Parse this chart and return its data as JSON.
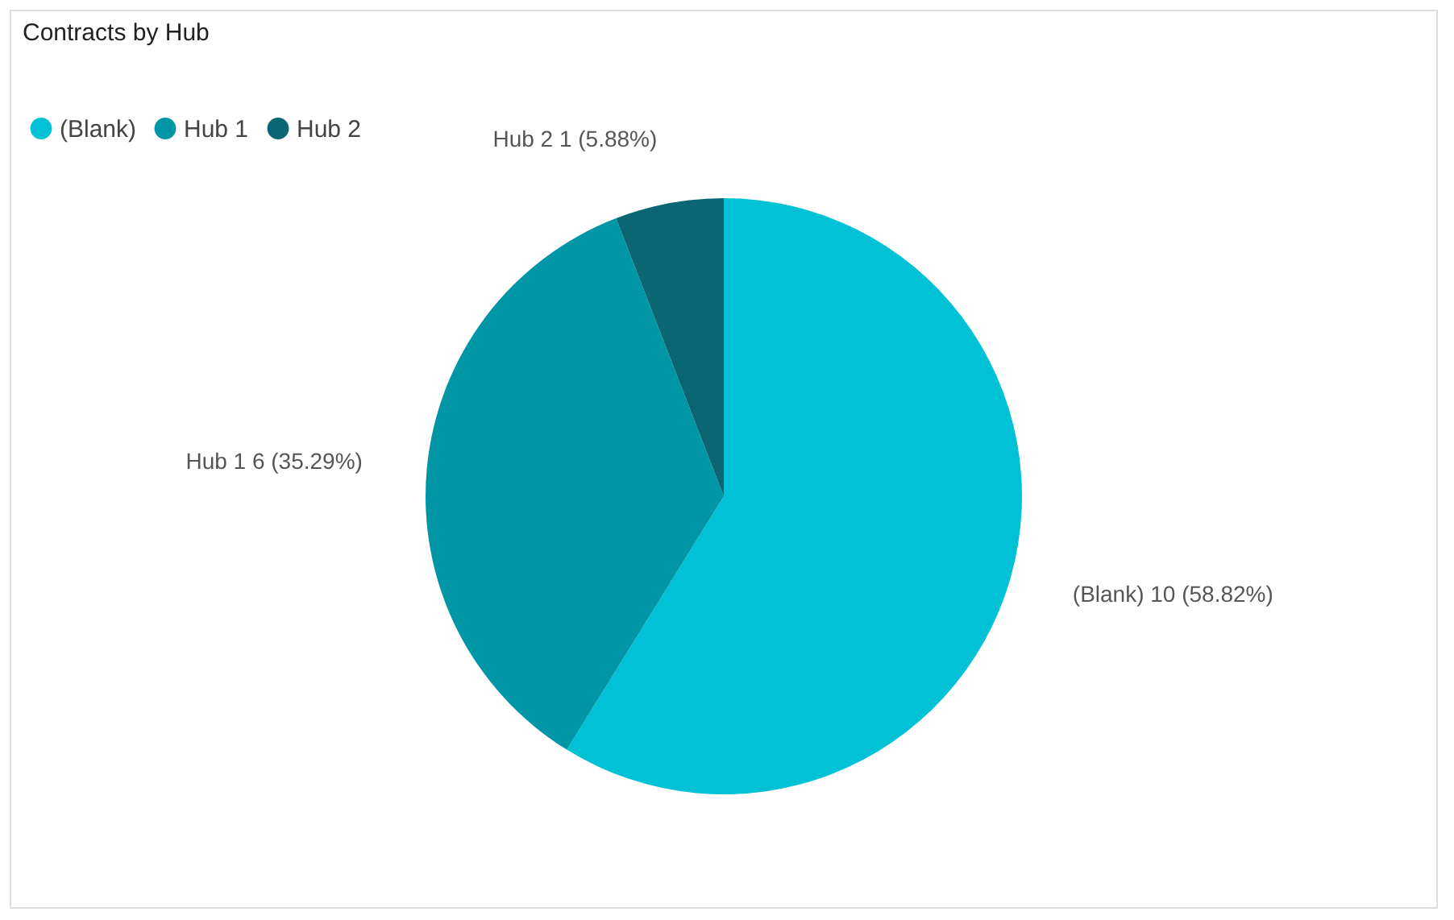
{
  "chart_data": {
    "type": "pie",
    "title": "Contracts by Hub",
    "categories": [
      "(Blank)",
      "Hub 1",
      "Hub 2"
    ],
    "values": [
      10,
      6,
      1
    ],
    "colors": [
      "#00c1d5",
      "#0096a6",
      "#0a6673"
    ],
    "value_labels": [
      "10 (58.82%)",
      "6 (35.29%)",
      "1 (5.88%)"
    ],
    "legend": "top left"
  }
}
